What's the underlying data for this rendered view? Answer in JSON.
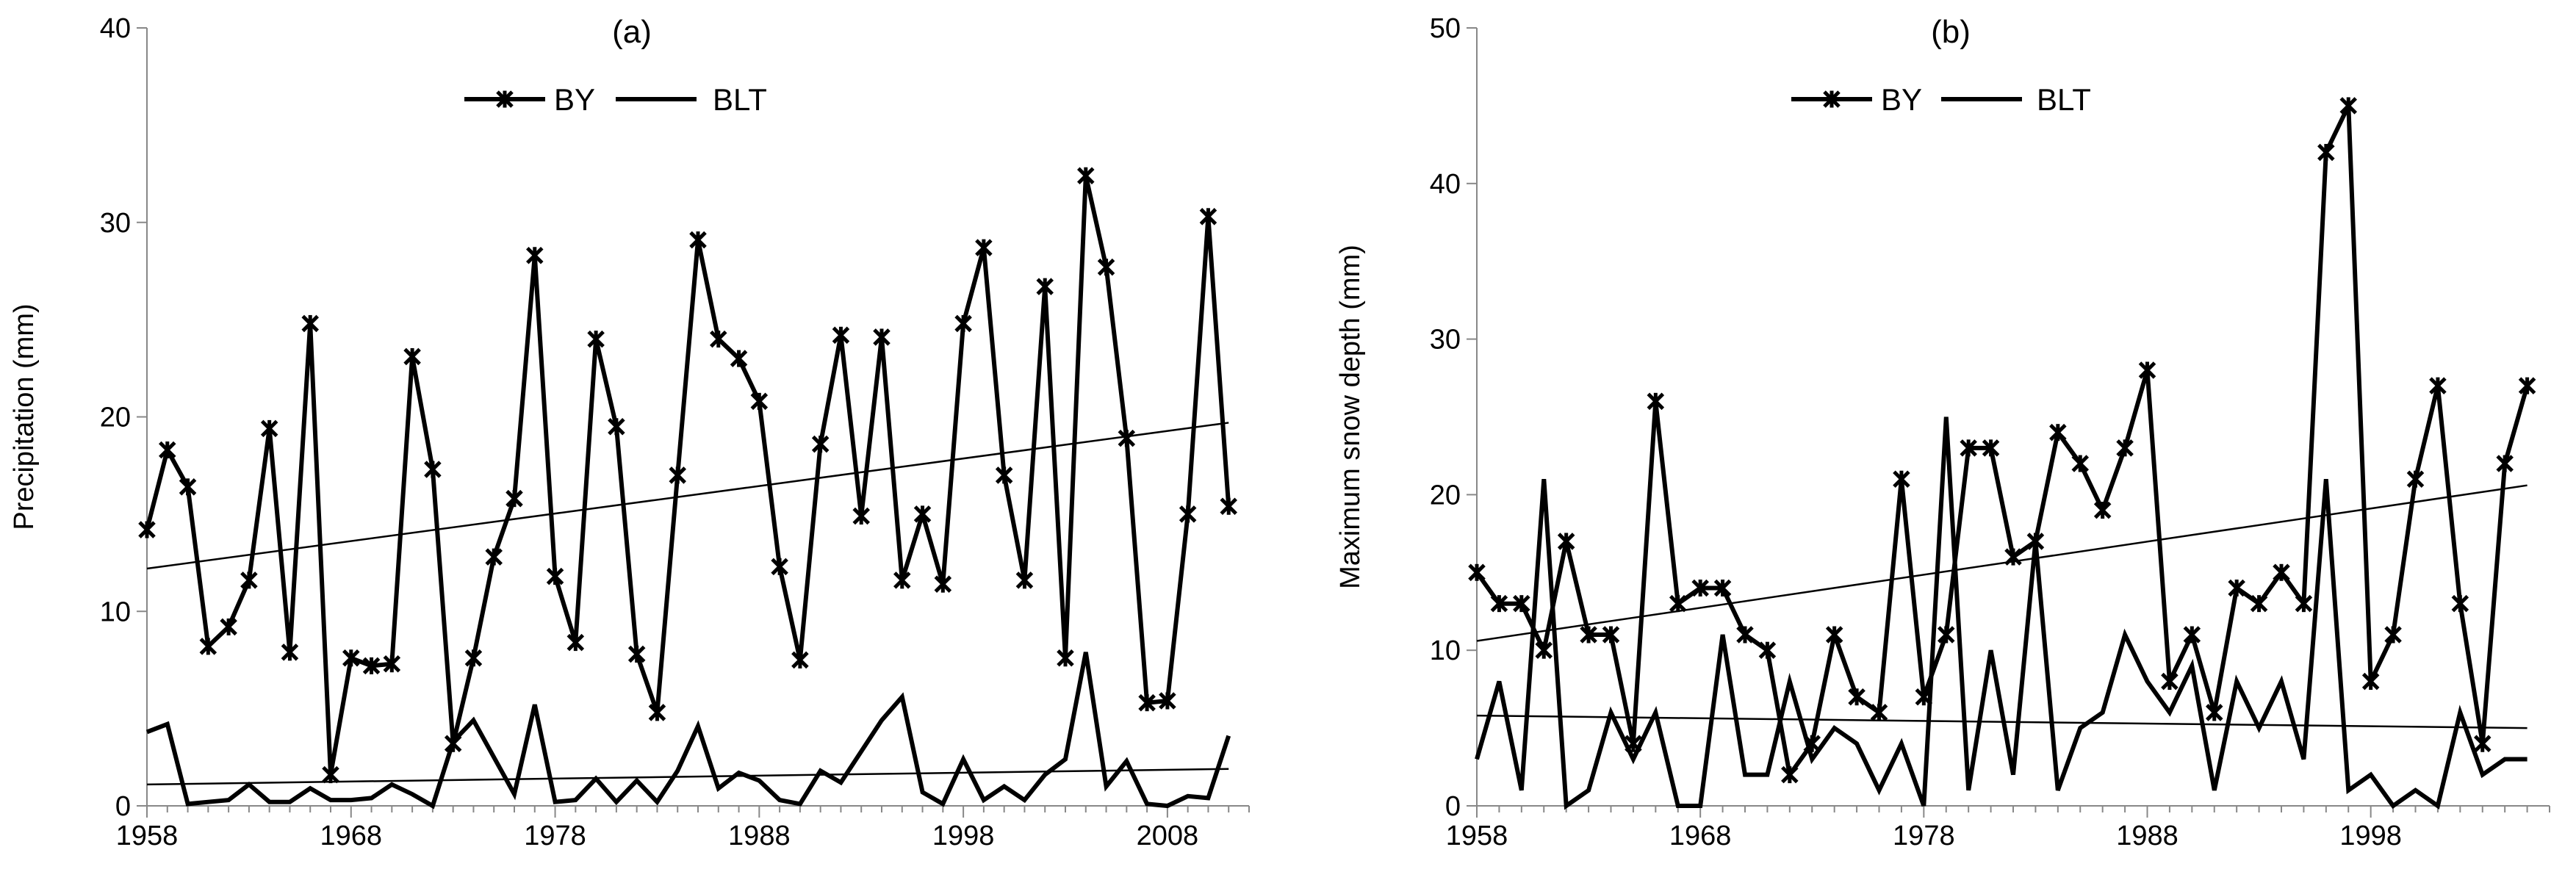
{
  "chart_data": [
    {
      "type": "line",
      "title": "(a)",
      "xlabel": "",
      "ylabel": "Precipitation (mm)",
      "xlim": [
        1958,
        2012
      ],
      "ylim": [
        0,
        40
      ],
      "yticks": [
        0,
        10,
        20,
        30,
        40
      ],
      "xticks": [
        1958,
        1968,
        1978,
        1988,
        1998,
        2008
      ],
      "legend": [
        "BY",
        "BLT"
      ],
      "legend_position": "top-center",
      "series": [
        {
          "name": "BY",
          "marker": "asterisk",
          "x": [
            1958,
            1959,
            1960,
            1961,
            1962,
            1963,
            1964,
            1965,
            1966,
            1967,
            1968,
            1969,
            1970,
            1971,
            1972,
            1973,
            1974,
            1975,
            1976,
            1977,
            1978,
            1979,
            1980,
            1981,
            1982,
            1983,
            1984,
            1985,
            1986,
            1987,
            1988,
            1989,
            1990,
            1991,
            1992,
            1993,
            1994,
            1995,
            1996,
            1997,
            1998,
            1999,
            2000,
            2001,
            2002,
            2003,
            2004,
            2005,
            2006,
            2007,
            2008,
            2009,
            2010,
            2011
          ],
          "values": [
            14.2,
            18.3,
            16.4,
            8.2,
            9.2,
            11.6,
            19.4,
            7.9,
            24.8,
            1.6,
            7.6,
            7.2,
            7.3,
            23.1,
            17.3,
            3.2,
            7.6,
            12.8,
            15.8,
            28.3,
            11.8,
            8.4,
            24,
            19.5,
            7.8,
            4.8,
            17,
            29.1,
            24,
            23,
            20.8,
            12.3,
            7.5,
            18.6,
            24.2,
            14.9,
            24.1,
            11.6,
            15,
            11.4,
            24.8,
            28.7,
            17,
            11.6,
            26.7,
            7.6,
            32.4,
            27.7,
            18.9,
            5.3,
            5.4,
            15,
            30.3,
            15.4
          ]
        },
        {
          "name": "BLT",
          "marker": "none",
          "x": [
            1958,
            1959,
            1960,
            1961,
            1962,
            1963,
            1964,
            1965,
            1966,
            1967,
            1968,
            1969,
            1970,
            1971,
            1972,
            1973,
            1974,
            1975,
            1976,
            1977,
            1978,
            1979,
            1980,
            1981,
            1982,
            1983,
            1984,
            1985,
            1986,
            1987,
            1988,
            1989,
            1990,
            1991,
            1992,
            1993,
            1994,
            1995,
            1996,
            1997,
            1998,
            1999,
            2000,
            2001,
            2002,
            2003,
            2004,
            2005,
            2006,
            2007,
            2008,
            2009,
            2010,
            2011
          ],
          "values": [
            3.8,
            4.2,
            0.1,
            0.2,
            0.3,
            1.1,
            0.2,
            0.2,
            0.9,
            0.3,
            0.3,
            0.4,
            1.1,
            0.6,
            0,
            3.3,
            4.4,
            2.5,
            0.6,
            5.2,
            0.2,
            0.3,
            1.4,
            0.2,
            1.3,
            0.2,
            1.8,
            4.1,
            0.9,
            1.7,
            1.3,
            0.3,
            0.1,
            1.8,
            1.2,
            2.8,
            4.4,
            5.6,
            0.7,
            0.1,
            2.4,
            0.3,
            1,
            0.3,
            1.6,
            2.4,
            7.9,
            1,
            2.3,
            0.1,
            0,
            0.5,
            0.4,
            3.6
          ]
        }
      ],
      "trendlines": [
        {
          "series": "BY",
          "x": [
            1958,
            2011
          ],
          "values": [
            12.2,
            19.7
          ]
        },
        {
          "series": "BLT",
          "x": [
            1958,
            2011
          ],
          "values": [
            1.1,
            1.9
          ]
        }
      ]
    },
    {
      "type": "line",
      "title": "(b)",
      "xlabel": "",
      "ylabel": "Maximum snow depth (mm)",
      "xlim": [
        1958,
        2006
      ],
      "ylim": [
        0,
        50
      ],
      "yticks": [
        0,
        10,
        20,
        30,
        40,
        50
      ],
      "xticks": [
        1958,
        1968,
        1978,
        1988,
        1998
      ],
      "legend": [
        "BY",
        "BLT"
      ],
      "legend_position": "top-center",
      "series": [
        {
          "name": "BY",
          "marker": "asterisk",
          "x": [
            1958,
            1959,
            1960,
            1961,
            1962,
            1963,
            1964,
            1965,
            1966,
            1967,
            1968,
            1969,
            1970,
            1971,
            1972,
            1973,
            1974,
            1975,
            1976,
            1977,
            1978,
            1979,
            1980,
            1981,
            1982,
            1983,
            1984,
            1985,
            1986,
            1987,
            1988,
            1989,
            1990,
            1991,
            1992,
            1993,
            1994,
            1995,
            1996,
            1997,
            1998,
            1999,
            2000,
            2001,
            2002,
            2003,
            2004,
            2005
          ],
          "values": [
            15,
            13,
            13,
            10,
            17,
            11,
            11,
            4,
            26,
            13,
            14,
            14,
            11,
            10,
            2,
            4,
            11,
            7,
            6,
            21,
            7,
            11,
            23,
            23,
            16,
            17,
            24,
            22,
            19,
            23,
            28,
            8,
            11,
            6,
            14,
            13,
            15,
            13,
            42,
            45,
            8,
            11,
            21,
            27,
            13,
            4,
            22,
            27
          ]
        },
        {
          "name": "BLT",
          "marker": "none",
          "x": [
            1958,
            1959,
            1960,
            1961,
            1962,
            1963,
            1964,
            1965,
            1966,
            1967,
            1968,
            1969,
            1970,
            1971,
            1972,
            1973,
            1974,
            1975,
            1976,
            1977,
            1978,
            1979,
            1980,
            1981,
            1982,
            1983,
            1984,
            1985,
            1986,
            1987,
            1988,
            1989,
            1990,
            1991,
            1992,
            1993,
            1994,
            1995,
            1996,
            1997,
            1998,
            1999,
            2000,
            2001,
            2002,
            2003,
            2004,
            2005
          ],
          "values": [
            3,
            8,
            1,
            21,
            0,
            1,
            6,
            3,
            6,
            0,
            0,
            11,
            2,
            2,
            8,
            3,
            5,
            4,
            1,
            4,
            0,
            25,
            1,
            10,
            2,
            17,
            1,
            5,
            6,
            11,
            8,
            6,
            9,
            1,
            8,
            5,
            8,
            3,
            21,
            1,
            2,
            0,
            1,
            0,
            6,
            2,
            3,
            3
          ]
        }
      ],
      "trendlines": [
        {
          "series": "BY",
          "x": [
            1958,
            2005
          ],
          "values": [
            10.6,
            20.6
          ]
        },
        {
          "series": "BLT",
          "x": [
            1958,
            2005
          ],
          "values": [
            5.8,
            5.0
          ]
        }
      ]
    }
  ]
}
